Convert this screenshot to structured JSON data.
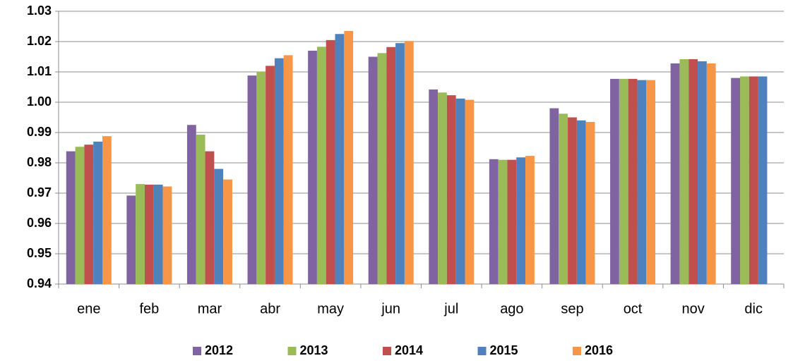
{
  "chart_data": {
    "type": "bar",
    "categories": [
      "ene",
      "feb",
      "mar",
      "abr",
      "may",
      "jun",
      "jul",
      "ago",
      "sep",
      "oct",
      "nov",
      "dic"
    ],
    "series": [
      {
        "name": "2012",
        "color": "#8064a2",
        "values": [
          0.9838,
          0.9692,
          0.9925,
          1.0088,
          1.017,
          1.015,
          1.0042,
          0.9812,
          0.998,
          1.0077,
          1.0128,
          1.008
        ]
      },
      {
        "name": "2013",
        "color": "#9bbb59",
        "values": [
          0.9853,
          0.973,
          0.9893,
          1.01,
          1.0183,
          1.0162,
          1.0032,
          0.981,
          0.9962,
          1.0077,
          1.0142,
          1.0085
        ]
      },
      {
        "name": "2014",
        "color": "#c0504d",
        "values": [
          0.986,
          0.9728,
          0.9838,
          1.012,
          1.0205,
          1.0182,
          1.0023,
          0.981,
          0.995,
          1.0077,
          1.0142,
          1.0085
        ]
      },
      {
        "name": "2015",
        "color": "#4f81bd",
        "values": [
          0.987,
          0.9728,
          0.978,
          1.0145,
          1.0225,
          1.0195,
          1.0012,
          0.9818,
          0.994,
          1.0073,
          1.0135,
          1.0085
        ]
      },
      {
        "name": "2016",
        "color": "#f79646",
        "values": [
          0.9888,
          0.9722,
          0.9745,
          1.0155,
          1.0235,
          1.0202,
          1.0008,
          0.9823,
          0.9935,
          1.0073,
          1.0128,
          null
        ]
      }
    ],
    "ylim": [
      0.94,
      1.03
    ],
    "yticks": [
      0.94,
      0.95,
      0.96,
      0.97,
      0.98,
      0.99,
      {
        "value": 1,
        "label": "1.00"
      },
      1.01,
      1.02,
      1.03
    ],
    "grid": true,
    "legend": "bottom"
  }
}
